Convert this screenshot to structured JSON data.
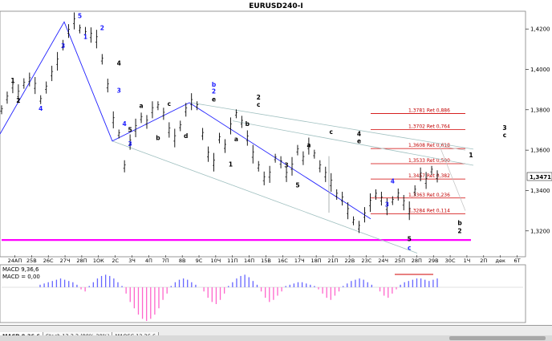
{
  "window": {
    "title": "EURUSD240-I"
  },
  "price_label_current": "1,3471",
  "chart_data": {
    "type": "line",
    "title": "EURUSD240-I",
    "y_ticks": [
      "1,4200",
      "1,4000",
      "1,3800",
      "1,3600",
      "1,3400",
      "1,3200"
    ],
    "ylim": [
      1.308,
      1.428
    ],
    "x_ticks": [
      "24АП",
      "25В",
      "26С",
      "27Ч",
      "28П",
      "1ОК",
      "2С",
      "3Ч",
      "4П",
      "7П",
      "8В",
      "9С",
      "10Ч",
      "11П",
      "14П",
      "15В",
      "16С",
      "17Ч",
      "18П",
      "21П",
      "22В",
      "23С",
      "24Ч",
      "25П",
      "28П",
      "29В",
      "30С",
      "1Ч",
      "2П",
      "дек",
      "6Т"
    ],
    "series": [
      {
        "values": [
          1.38,
          1.386,
          1.392,
          1.388,
          1.393,
          1.395,
          1.392,
          1.385,
          1.391,
          1.398,
          1.404,
          1.412,
          1.419,
          1.424,
          1.42,
          1.418,
          1.417,
          1.415,
          1.405,
          1.392,
          1.375,
          1.368,
          1.352,
          1.364,
          1.371,
          1.376,
          1.374,
          1.38,
          1.382,
          1.378,
          1.37,
          1.366,
          1.372,
          1.38,
          1.384,
          1.382,
          1.368,
          1.358,
          1.354,
          1.366,
          1.362,
          1.372,
          1.378,
          1.374,
          1.366,
          1.358,
          1.352,
          1.346,
          1.348,
          1.356,
          1.354,
          1.348,
          1.352,
          1.36,
          1.356,
          1.362,
          1.358,
          1.352,
          1.348,
          1.344,
          1.338,
          1.336,
          1.33,
          1.325,
          1.322,
          1.328,
          1.334,
          1.338,
          1.336,
          1.332,
          1.335,
          1.338,
          1.334,
          1.33,
          1.34,
          1.348,
          1.345,
          1.35,
          1.347
        ]
      }
    ],
    "levels": [
      {
        "value": 1.3781,
        "label": "1,3781 Ret 0,886"
      },
      {
        "value": 1.3702,
        "label": "1,3702 Ret 0,764"
      },
      {
        "value": 1.3608,
        "label": "1,3608 Ret 0,618"
      },
      {
        "value": 1.3533,
        "label": "1,3533 Ret 0,500"
      },
      {
        "value": 1.3457,
        "label": "1,3457 Ret 0,382"
      },
      {
        "value": 1.3363,
        "label": "1,3363 Ret 0,236"
      },
      {
        "value": 1.3284,
        "label": "1,3284 Ret 0,114"
      }
    ],
    "support_line": 1.3155,
    "wave_labels": [
      {
        "text": "1",
        "x": 2,
        "y": 1.3935,
        "color": "#000"
      },
      {
        "text": "2",
        "x": 3,
        "y": 1.3835,
        "color": "#000"
      },
      {
        "text": "3",
        "x": 11,
        "y": 1.4105,
        "color": "#2020ff"
      },
      {
        "text": "4",
        "x": 7,
        "y": 1.3795,
        "color": "#2020ff"
      },
      {
        "text": "5",
        "x": 14,
        "y": 1.4255,
        "color": "#2020ff"
      },
      {
        "text": "2",
        "x": 18,
        "y": 1.4195,
        "color": "#2020ff"
      },
      {
        "text": "1",
        "x": 15,
        "y": 1.415,
        "color": "#2020ff"
      },
      {
        "text": "4",
        "x": 21,
        "y": 1.402,
        "color": "#000"
      },
      {
        "text": "3",
        "x": 21,
        "y": 1.3885,
        "color": "#2020ff"
      },
      {
        "text": "4",
        "x": 22,
        "y": 1.372,
        "color": "#2020ff"
      },
      {
        "text": "5",
        "x": 23,
        "y": 1.369,
        "color": "#000"
      },
      {
        "text": "3",
        "x": 23,
        "y": 1.362,
        "color": "#2020ff"
      },
      {
        "text": "a",
        "x": 25,
        "y": 1.381,
        "color": "#000"
      },
      {
        "text": "b",
        "x": 28,
        "y": 1.365,
        "color": "#000"
      },
      {
        "text": "c",
        "x": 30,
        "y": 1.382,
        "color": "#000"
      },
      {
        "text": "d",
        "x": 33,
        "y": 1.366,
        "color": "#000"
      },
      {
        "text": "b",
        "x": 38,
        "y": 1.3915,
        "color": "#2020ff"
      },
      {
        "text": "2",
        "x": 38,
        "y": 1.388,
        "color": "#2020ff"
      },
      {
        "text": "e",
        "x": 38,
        "y": 1.384,
        "color": "#000"
      },
      {
        "text": "a",
        "x": 42,
        "y": 1.3645,
        "color": "#000"
      },
      {
        "text": "b",
        "x": 44,
        "y": 1.372,
        "color": "#000"
      },
      {
        "text": "1",
        "x": 41,
        "y": 1.352,
        "color": "#000"
      },
      {
        "text": "2",
        "x": 46,
        "y": 1.385,
        "color": "#000"
      },
      {
        "text": "c",
        "x": 46,
        "y": 1.3815,
        "color": "#000"
      },
      {
        "text": "3",
        "x": 51,
        "y": 1.3515,
        "color": "#000"
      },
      {
        "text": "5",
        "x": 53,
        "y": 1.3415,
        "color": "#000"
      },
      {
        "text": "a",
        "x": 55,
        "y": 1.3615,
        "color": "#000"
      },
      {
        "text": "c",
        "x": 59,
        "y": 1.368,
        "color": "#000"
      },
      {
        "text": "4",
        "x": 64,
        "y": 1.367,
        "color": "#000"
      },
      {
        "text": "e",
        "x": 64,
        "y": 1.3635,
        "color": "#000"
      },
      {
        "text": "3",
        "x": 69,
        "y": 1.332,
        "color": "#2020ff"
      },
      {
        "text": "4",
        "x": 70,
        "y": 1.3435,
        "color": "#2020ff"
      },
      {
        "text": "5",
        "x": 73,
        "y": 1.315,
        "color": "#000"
      },
      {
        "text": "c",
        "x": 73,
        "y": 1.3105,
        "color": "#2020ff"
      },
      {
        "text": "1",
        "x": 84,
        "y": 1.3565,
        "color": "#000"
      },
      {
        "text": "b",
        "x": 82,
        "y": 1.323,
        "color": "#000"
      },
      {
        "text": "2",
        "x": 82,
        "y": 1.319,
        "color": "#000"
      },
      {
        "text": "3",
        "x": 90,
        "y": 1.37,
        "color": "#000"
      },
      {
        "text": "c",
        "x": 90,
        "y": 1.3665,
        "color": "#000"
      }
    ]
  },
  "macd": {
    "label_main": "MACD 9,36,6",
    "label_value": "MACD = 0,00",
    "values": [
      0.2,
      0.3,
      0.4,
      0.5,
      0.6,
      0.7,
      0.6,
      0.5,
      0.4,
      0.2,
      -0.1,
      -0.2,
      0.1,
      0.4,
      0.7,
      0.9,
      1.0,
      0.9,
      0.7,
      0.4,
      0.1,
      -0.3,
      -0.7,
      -1.0,
      -1.3,
      -1.5,
      -1.6,
      -1.5,
      -1.3,
      -1.0,
      -0.6,
      -0.3,
      0.1,
      0.4,
      0.6,
      0.7,
      0.6,
      0.4,
      0.2,
      0.0,
      -0.2,
      -0.5,
      -0.7,
      -0.8,
      -0.6,
      -0.3,
      0.1,
      0.4,
      0.7,
      0.9,
      1.0,
      0.8,
      0.5,
      0.2,
      -0.2,
      -0.5,
      -0.7,
      -0.6,
      -0.4,
      -0.2,
      0.1,
      0.2,
      0.3,
      0.4,
      0.4,
      0.3,
      0.2,
      0.1,
      -0.1,
      -0.3,
      -0.5,
      -0.6,
      -0.4,
      -0.2,
      0.1,
      0.3,
      0.5,
      0.6,
      0.7,
      0.6,
      0.4,
      0.2,
      0.0,
      -0.2,
      -0.4,
      -0.5,
      -0.3,
      -0.1,
      0.2,
      0.4,
      0.5,
      0.6,
      0.7,
      0.7,
      0.6,
      0.5,
      0.6,
      0.7
    ]
  },
  "tabs": [
    {
      "label": "MACD 9,36,6",
      "active": true
    },
    {
      "label": "Stoch 13,3,3 (80%-20%)",
      "active": false
    },
    {
      "label": "MAOSC 12,36,6",
      "active": false
    }
  ]
}
